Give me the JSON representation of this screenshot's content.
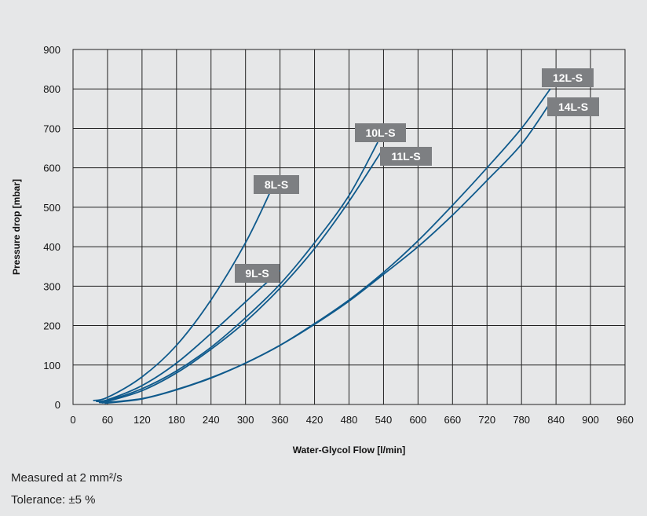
{
  "chart_data": {
    "type": "line",
    "xlabel": "Water-Glycol Flow [l/min]",
    "ylabel": "Pressure drop [mbar]",
    "xlim": [
      0,
      960
    ],
    "ylim": [
      0,
      900
    ],
    "x_ticks": [
      0,
      60,
      120,
      180,
      240,
      300,
      360,
      420,
      480,
      540,
      600,
      660,
      720,
      780,
      840,
      900,
      960
    ],
    "y_ticks": [
      0,
      100,
      200,
      300,
      400,
      500,
      600,
      700,
      800,
      900
    ],
    "grid": true,
    "line_color": "#0f5a8c",
    "label_color": "#7d7f82",
    "series": [
      {
        "name": "8L-S",
        "x": [
          35,
          60,
          120,
          180,
          240,
          300,
          345
        ],
        "y": [
          10,
          18,
          70,
          150,
          265,
          410,
          545
        ]
      },
      {
        "name": "9L-S",
        "x": [
          40,
          60,
          120,
          180,
          240,
          300,
          360
        ],
        "y": [
          8,
          12,
          48,
          105,
          180,
          260,
          340
        ]
      },
      {
        "name": "10L-S",
        "x": [
          40,
          60,
          120,
          180,
          240,
          300,
          360,
          420,
          480,
          530
        ],
        "y": [
          8,
          10,
          40,
          85,
          145,
          220,
          305,
          410,
          530,
          665
        ]
      },
      {
        "name": "11L-S",
        "x": [
          45,
          60,
          120,
          180,
          240,
          300,
          360,
          420,
          480,
          540
        ],
        "y": [
          5,
          8,
          35,
          80,
          140,
          210,
          295,
          395,
          515,
          650
        ]
      },
      {
        "name": "12L-S",
        "x": [
          50,
          120,
          180,
          240,
          300,
          360,
          420,
          480,
          540,
          600,
          660,
          720,
          780,
          830
        ],
        "y": [
          4,
          15,
          38,
          68,
          105,
          150,
          205,
          265,
          335,
          415,
          505,
          600,
          700,
          800
        ]
      },
      {
        "name": "14L-S",
        "x": [
          55,
          120,
          180,
          240,
          300,
          360,
          420,
          480,
          540,
          600,
          660,
          720,
          780,
          830
        ],
        "y": [
          3,
          14,
          37,
          67,
          105,
          150,
          203,
          262,
          330,
          400,
          480,
          568,
          660,
          765
        ]
      }
    ]
  },
  "labels": [
    {
      "text": "8L-S",
      "series": "8L-S"
    },
    {
      "text": "9L-S",
      "series": "9L-S"
    },
    {
      "text": "10L-S",
      "series": "10L-S"
    },
    {
      "text": "11L-S",
      "series": "11L-S"
    },
    {
      "text": "12L-S",
      "series": "12L-S"
    },
    {
      "text": "14L-S",
      "series": "14L-S"
    }
  ],
  "notes": {
    "measured": "Measured at 2 mm²/s",
    "tolerance": "Tolerance: ±5 %"
  }
}
